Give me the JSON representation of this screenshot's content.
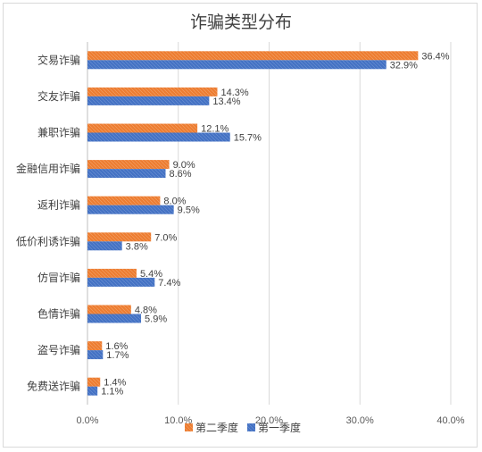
{
  "chart_data": {
    "type": "bar",
    "orientation": "horizontal",
    "title": "诈骗类型分布",
    "categories": [
      "交易诈骗",
      "交友诈骗",
      "兼职诈骗",
      "金融信用诈骗",
      "返利诈骗",
      "低价利诱诈骗",
      "仿冒诈骗",
      "色情诈骗",
      "盗号诈骗",
      "免费送诈骗"
    ],
    "series": [
      {
        "name": "第二季度",
        "color": "#ED7D31",
        "values": [
          36.4,
          14.3,
          12.1,
          9.0,
          8.0,
          7.0,
          5.4,
          4.8,
          1.6,
          1.4
        ],
        "labels": [
          "36.4%",
          "14.3%",
          "12.1%",
          "9.0%",
          "8.0%",
          "7.0%",
          "5.4%",
          "4.8%",
          "1.6%",
          "1.4%"
        ]
      },
      {
        "name": "第一季度",
        "color": "#4472C4",
        "values": [
          32.9,
          13.4,
          15.7,
          8.6,
          9.5,
          3.8,
          7.4,
          5.9,
          1.7,
          1.1
        ],
        "labels": [
          "32.9%",
          "13.4%",
          "15.7%",
          "8.6%",
          "9.5%",
          "3.8%",
          "7.4%",
          "5.9%",
          "1.7%",
          "1.1%"
        ]
      }
    ],
    "xlim": [
      0,
      40
    ],
    "xticks": [
      "0.0%",
      "10.0%",
      "20.0%",
      "30.0%",
      "40.0%"
    ],
    "grid": true,
    "legend_position": "bottom"
  }
}
